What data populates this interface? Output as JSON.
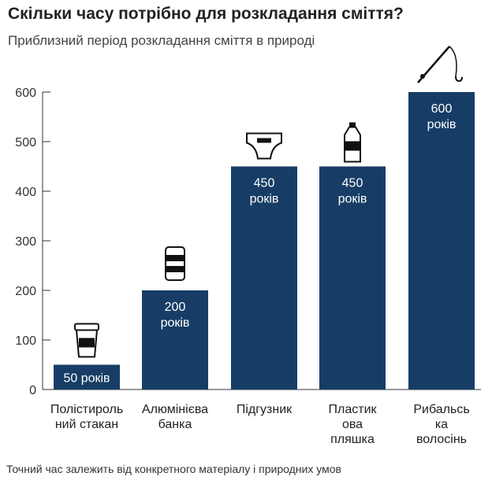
{
  "header": {
    "title": "Скільки часу потрібно для розкладання сміття?",
    "subtitle": "Приблизний період розкладання сміття в природі"
  },
  "footer": {
    "note": "Точний час залежить від конкретного матеріалу і природних умов"
  },
  "chart_data": {
    "type": "bar",
    "title": "Скільки часу потрібно для розкладання сміття?",
    "subtitle": "Приблизний період розкладання сміття в природі",
    "xlabel": "",
    "ylabel": "",
    "ylim": [
      0,
      600
    ],
    "yticks": [
      0,
      100,
      200,
      300,
      400,
      500,
      600
    ],
    "grid": false,
    "bar_color": "#173d66",
    "categories": [
      [
        "Полістироль",
        "ний стакан"
      ],
      [
        "Алюмінієва",
        "банка"
      ],
      [
        "Підгузник"
      ],
      [
        "Пластик",
        "ова",
        "пляшка"
      ],
      [
        "Рибальсь",
        "ка",
        "волосінь"
      ]
    ],
    "values": [
      50,
      200,
      450,
      450,
      600
    ],
    "data_labels": [
      [
        "50 років"
      ],
      [
        "200",
        "років"
      ],
      [
        "450",
        "років"
      ],
      [
        "450",
        "років"
      ],
      [
        "600",
        "років"
      ]
    ],
    "icons": [
      "coffee-cup-icon",
      "aluminum-can-icon",
      "diaper-icon",
      "plastic-bottle-icon",
      "fishing-rod-icon"
    ]
  }
}
